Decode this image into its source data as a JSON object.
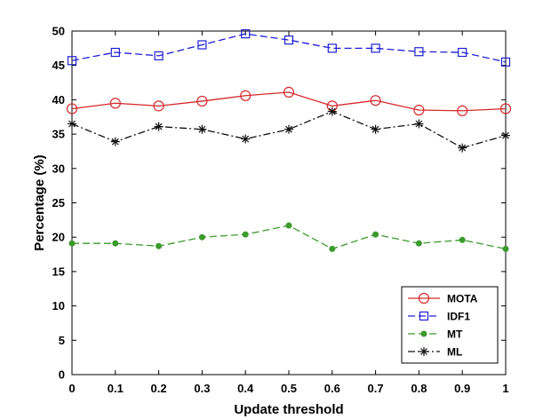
{
  "chart_data": {
    "type": "line",
    "xlabel": "Update threshold",
    "ylabel": "Percentage (%)",
    "xlim": [
      0,
      1
    ],
    "ylim": [
      0,
      50
    ],
    "x_ticks": [
      "0",
      "0.1",
      "0.2",
      "0.3",
      "0.4",
      "0.5",
      "0.6",
      "0.7",
      "0.8",
      "0.9",
      "1"
    ],
    "y_ticks": [
      "0",
      "5",
      "10",
      "15",
      "20",
      "25",
      "30",
      "35",
      "40",
      "45",
      "50"
    ],
    "x": [
      0,
      0.1,
      0.2,
      0.3,
      0.4,
      0.5,
      0.6,
      0.7,
      0.8,
      0.9,
      1
    ],
    "grid": false,
    "legend_position": "bottom-right",
    "series": [
      {
        "name": "MOTA",
        "color": "#d62728",
        "marker": "circle",
        "dash": "solid",
        "values": [
          38.7,
          39.5,
          39.1,
          39.8,
          40.6,
          41.1,
          39.1,
          39.9,
          38.5,
          38.4,
          38.7
        ]
      },
      {
        "name": "IDF1",
        "color": "#1f1fd4",
        "marker": "square",
        "dash": "dashed",
        "values": [
          45.7,
          46.9,
          46.4,
          48.0,
          49.6,
          48.7,
          47.5,
          47.5,
          47.0,
          46.9,
          45.5
        ]
      },
      {
        "name": "MT",
        "color": "#3a9a2a",
        "marker": "dot",
        "dash": "dashed",
        "values": [
          19.1,
          19.1,
          18.7,
          20.0,
          20.4,
          21.7,
          18.3,
          20.4,
          19.1,
          19.6,
          18.3
        ]
      },
      {
        "name": "ML",
        "color": "#111111",
        "marker": "asterisk",
        "dash": "dashdot",
        "values": [
          36.5,
          33.9,
          36.1,
          35.7,
          34.3,
          35.7,
          38.3,
          35.7,
          36.5,
          33.0,
          34.8
        ]
      }
    ]
  }
}
